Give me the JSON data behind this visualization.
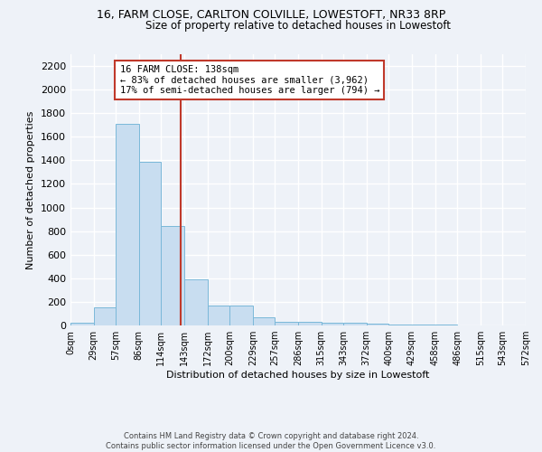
{
  "title1": "16, FARM CLOSE, CARLTON COLVILLE, LOWESTOFT, NR33 8RP",
  "title2": "Size of property relative to detached houses in Lowestoft",
  "xlabel": "Distribution of detached houses by size in Lowestoft",
  "ylabel": "Number of detached properties",
  "bin_edges": [
    0,
    29,
    57,
    86,
    114,
    143,
    172,
    200,
    229,
    257,
    286,
    315,
    343,
    372,
    400,
    429,
    458,
    486,
    515,
    543,
    572
  ],
  "bar_heights": [
    20,
    155,
    1710,
    1390,
    840,
    390,
    170,
    165,
    70,
    30,
    30,
    25,
    20,
    15,
    5,
    5,
    5,
    3,
    3,
    3
  ],
  "bar_color": "#c8ddf0",
  "bar_edge_color": "#7ab8d9",
  "property_size": 138,
  "property_line_color": "#c0392b",
  "annotation_text": "16 FARM CLOSE: 138sqm\n← 83% of detached houses are smaller (3,962)\n17% of semi-detached houses are larger (794) →",
  "annotation_box_color": "#ffffff",
  "annotation_box_edge_color": "#c0392b",
  "ylim": [
    0,
    2300
  ],
  "yticks": [
    0,
    200,
    400,
    600,
    800,
    1000,
    1200,
    1400,
    1600,
    1800,
    2000,
    2200
  ],
  "footer": "Contains HM Land Registry data © Crown copyright and database right 2024.\nContains public sector information licensed under the Open Government Licence v3.0.",
  "background_color": "#eef2f8",
  "grid_color": "#ffffff"
}
